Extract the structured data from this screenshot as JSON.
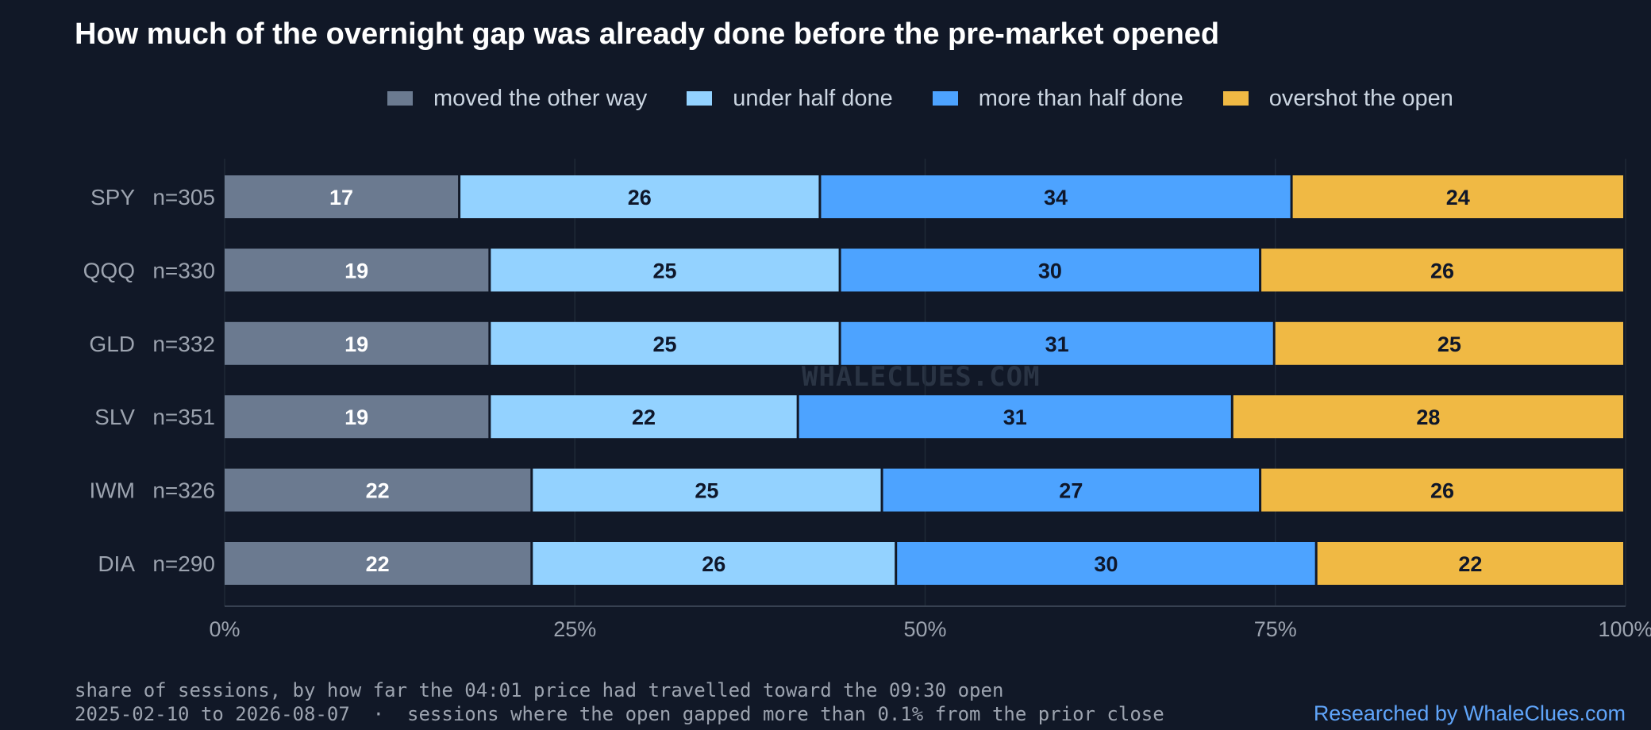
{
  "chart_data": {
    "type": "bar",
    "orientation": "horizontal-stacked-100",
    "title": "How much of the overnight gap was already done before the pre-market opened",
    "categories": [
      "SPY",
      "QQQ",
      "GLD",
      "SLV",
      "IWM",
      "DIA"
    ],
    "sample_sizes": [
      "n=305",
      "n=330",
      "n=332",
      "n=351",
      "n=326",
      "n=290"
    ],
    "series": [
      {
        "name": "moved the other way",
        "color": "#6b7a90",
        "label_color": "#ffffff",
        "values": [
          17,
          19,
          19,
          19,
          22,
          22
        ]
      },
      {
        "name": "under half done",
        "color": "#93d2ff",
        "label_color": "#0f172a",
        "values": [
          26,
          25,
          25,
          22,
          25,
          26
        ]
      },
      {
        "name": "more than half done",
        "color": "#4da3ff",
        "label_color": "#0f172a",
        "values": [
          34,
          30,
          31,
          31,
          27,
          30
        ]
      },
      {
        "name": "overshot the open",
        "color": "#f0b944",
        "label_color": "#0f172a",
        "values": [
          24,
          26,
          25,
          28,
          26,
          22
        ]
      }
    ],
    "xlim": [
      0,
      100
    ],
    "x_ticks": [
      "0%",
      "25%",
      "50%",
      "75%",
      "100%"
    ],
    "grid": true,
    "legend_position": "top"
  },
  "footer": {
    "line1": "share of sessions, by how far the 04:01 price had travelled toward the 09:30 open",
    "line2": "2025-02-10 to 2026-08-07  ·  sessions where the open gapped more than 0.1% from the prior close",
    "credit": "Researched by WhaleClues.com"
  },
  "watermark": "WHALECLUES.COM"
}
